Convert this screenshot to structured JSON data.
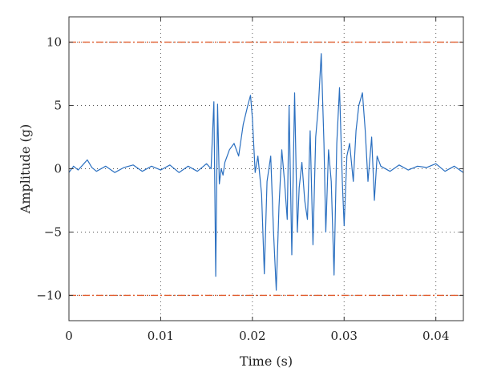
{
  "chart_data": {
    "type": "line",
    "title": "",
    "xlabel": "Time (s)",
    "ylabel": "Amplitude (g)",
    "xlim": [
      0,
      0.043
    ],
    "ylim": [
      -12,
      12
    ],
    "grid": true,
    "x_ticks": [
      0,
      0.01,
      0.02,
      0.03,
      0.04
    ],
    "x_tick_labels": [
      "0",
      "0.01",
      "0.02",
      "0.03",
      "0.04"
    ],
    "y_ticks": [
      -10,
      -5,
      0,
      5,
      10
    ],
    "y_tick_labels": [
      "−10",
      "−5",
      "0",
      "5",
      "10"
    ],
    "series": [
      {
        "color": "#2a6fc0",
        "x": [
          0,
          0.0005,
          0.001,
          0.0015,
          0.002,
          0.0025,
          0.003,
          0.004,
          0.005,
          0.006,
          0.007,
          0.008,
          0.009,
          0.01,
          0.011,
          0.012,
          0.013,
          0.014,
          0.015,
          0.0155,
          0.0158,
          0.016,
          0.0162,
          0.0164,
          0.0166,
          0.0168,
          0.017,
          0.0175,
          0.018,
          0.0185,
          0.019,
          0.0195,
          0.0198,
          0.02,
          0.0203,
          0.0206,
          0.021,
          0.0213,
          0.0216,
          0.022,
          0.0223,
          0.0226,
          0.0229,
          0.0232,
          0.0235,
          0.0238,
          0.024,
          0.0243,
          0.0246,
          0.0249,
          0.0251,
          0.0254,
          0.0257,
          0.026,
          0.0263,
          0.0266,
          0.0269,
          0.0272,
          0.0275,
          0.0278,
          0.028,
          0.0283,
          0.0286,
          0.0289,
          0.0292,
          0.0295,
          0.0298,
          0.03,
          0.0303,
          0.0306,
          0.031,
          0.0313,
          0.0316,
          0.032,
          0.0323,
          0.0326,
          0.033,
          0.0333,
          0.0336,
          0.034,
          0.035,
          0.036,
          0.037,
          0.038,
          0.039,
          0.04,
          0.041,
          0.042,
          0.043
        ],
        "y": [
          -0.3,
          0.2,
          -0.1,
          0.3,
          0.7,
          0.1,
          -0.2,
          0.2,
          -0.3,
          0.1,
          0.3,
          -0.2,
          0.2,
          -0.1,
          0.3,
          -0.3,
          0.2,
          -0.2,
          0.4,
          0.0,
          5.3,
          -8.5,
          5.1,
          -1.2,
          0.0,
          -0.5,
          0.5,
          1.5,
          2.0,
          1.0,
          3.5,
          5.0,
          5.8,
          4.0,
          -0.3,
          1.0,
          -2.0,
          -8.3,
          -1.0,
          1.0,
          -5.0,
          -9.6,
          -3.0,
          1.5,
          -1.0,
          -4.0,
          5.0,
          -6.8,
          6.0,
          -5.0,
          -1.5,
          0.5,
          -2.5,
          -4.0,
          3.0,
          -6.0,
          2.5,
          5.0,
          9.1,
          2.0,
          -5.0,
          1.5,
          -1.0,
          -8.4,
          2.0,
          6.4,
          -1.0,
          -4.5,
          1.0,
          2.0,
          -1.0,
          3.0,
          5.0,
          6.0,
          3.0,
          -1.0,
          2.5,
          -2.5,
          1.0,
          0.2,
          -0.2,
          0.3,
          -0.1,
          0.2,
          0.1,
          0.4,
          -0.2,
          0.2,
          -0.3
        ]
      }
    ],
    "reference_lines": [
      {
        "y": 10,
        "color": "#e05a2a",
        "style": "dash-dot"
      },
      {
        "y": -10,
        "color": "#e05a2a",
        "style": "dash-dot"
      }
    ]
  }
}
